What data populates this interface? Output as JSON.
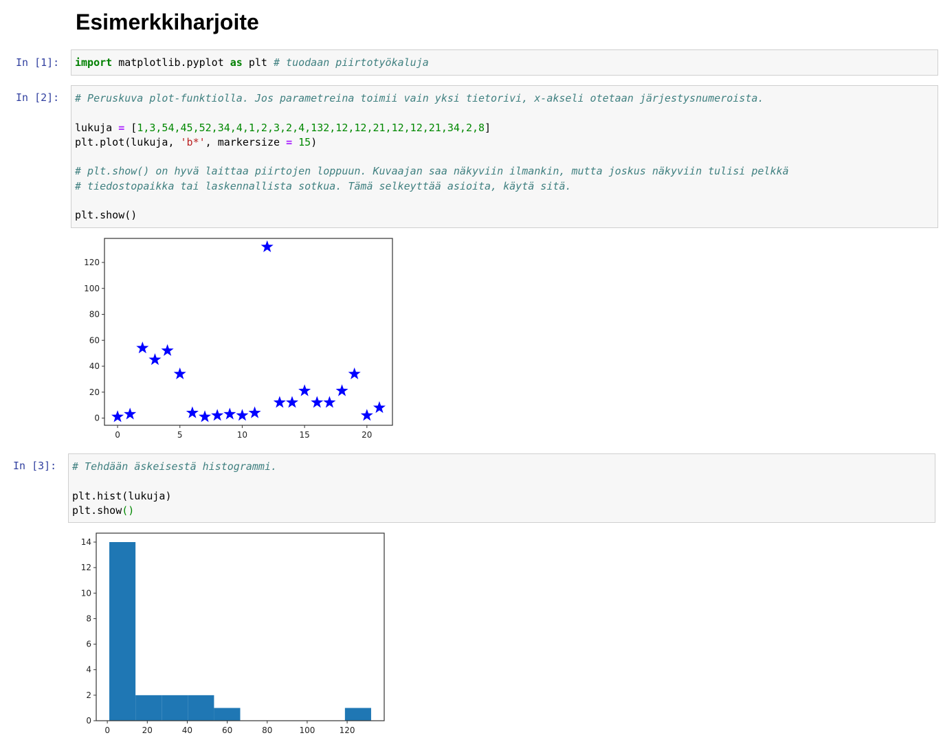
{
  "notebook": {
    "title": "Esimerkkiharjoite"
  },
  "cells": {
    "c1": {
      "prompt": "In [1]:",
      "import_kw": "import",
      "module": " matplotlib.pyplot ",
      "as_kw": "as",
      "alias": " plt ",
      "comment": "# tuodaan piirtotyökaluja"
    },
    "c2": {
      "prompt": "In [2]:",
      "comment1": "# Peruskuva plot-funktiolla. Jos parametreina toimii vain yksi tietorivi, x-akseli otetaan järjestysnumeroista.",
      "assign_name": "lukuja ",
      "eq": "=",
      "list_open": " [",
      "list_items": "1,3,54,45,52,34,4,1,2,3,2,4,132,12,12,21,12,12,21,34,2,8",
      "list_close": "]",
      "plot_call": "plt.plot(lukuja, ",
      "fmt": "'b*'",
      "plot_args": ", markersize ",
      "eq2": "=",
      "msize": " 15",
      "plot_close": ")",
      "comment2": "# plt.show() on hyvä laittaa piirtojen loppuun. Kuvaajan saa näkyviin ilmankin, mutta joskus näkyviin tulisi pelkkä",
      "comment3": "# tiedostopaikka tai laskennallista sotkua. Tämä selkeyttää asioita, käytä sitä.",
      "show": "plt.show()"
    },
    "c3": {
      "prompt": "In [3]:",
      "comment": "# Tehdään äskeisestä histogrammi.",
      "hist": "plt.hist(lukuja)",
      "show_name": "plt.show",
      "show_paren": "()"
    }
  },
  "chart_data": [
    {
      "type": "scatter",
      "x": [
        0,
        1,
        2,
        3,
        4,
        5,
        6,
        7,
        8,
        9,
        10,
        11,
        12,
        13,
        14,
        15,
        16,
        17,
        18,
        19,
        20,
        21
      ],
      "y": [
        1,
        3,
        54,
        45,
        52,
        34,
        4,
        1,
        2,
        3,
        2,
        4,
        132,
        12,
        12,
        21,
        12,
        12,
        21,
        34,
        2,
        8
      ],
      "marker": "star",
      "color": "#0000ff",
      "xlim": [
        -1.05,
        22.05
      ],
      "ylim": [
        -5.55,
        138.55
      ],
      "xticks": [
        0,
        5,
        10,
        15,
        20
      ],
      "yticks": [
        0,
        20,
        40,
        60,
        80,
        100,
        120
      ],
      "grid": false
    },
    {
      "type": "bar",
      "bin_edges": [
        1,
        14.1,
        27.2,
        40.3,
        53.4,
        66.5,
        79.6,
        92.7,
        105.8,
        118.9,
        132
      ],
      "values": [
        14,
        2,
        2,
        2,
        1,
        0,
        0,
        0,
        0,
        1
      ],
      "color": "#1f77b4",
      "xlim": [
        -5.55,
        138.55
      ],
      "ylim": [
        0,
        14.7
      ],
      "xticks": [
        0,
        20,
        40,
        60,
        80,
        100,
        120
      ],
      "yticks": [
        0,
        2,
        4,
        6,
        8,
        10,
        12,
        14
      ],
      "grid": false
    }
  ]
}
